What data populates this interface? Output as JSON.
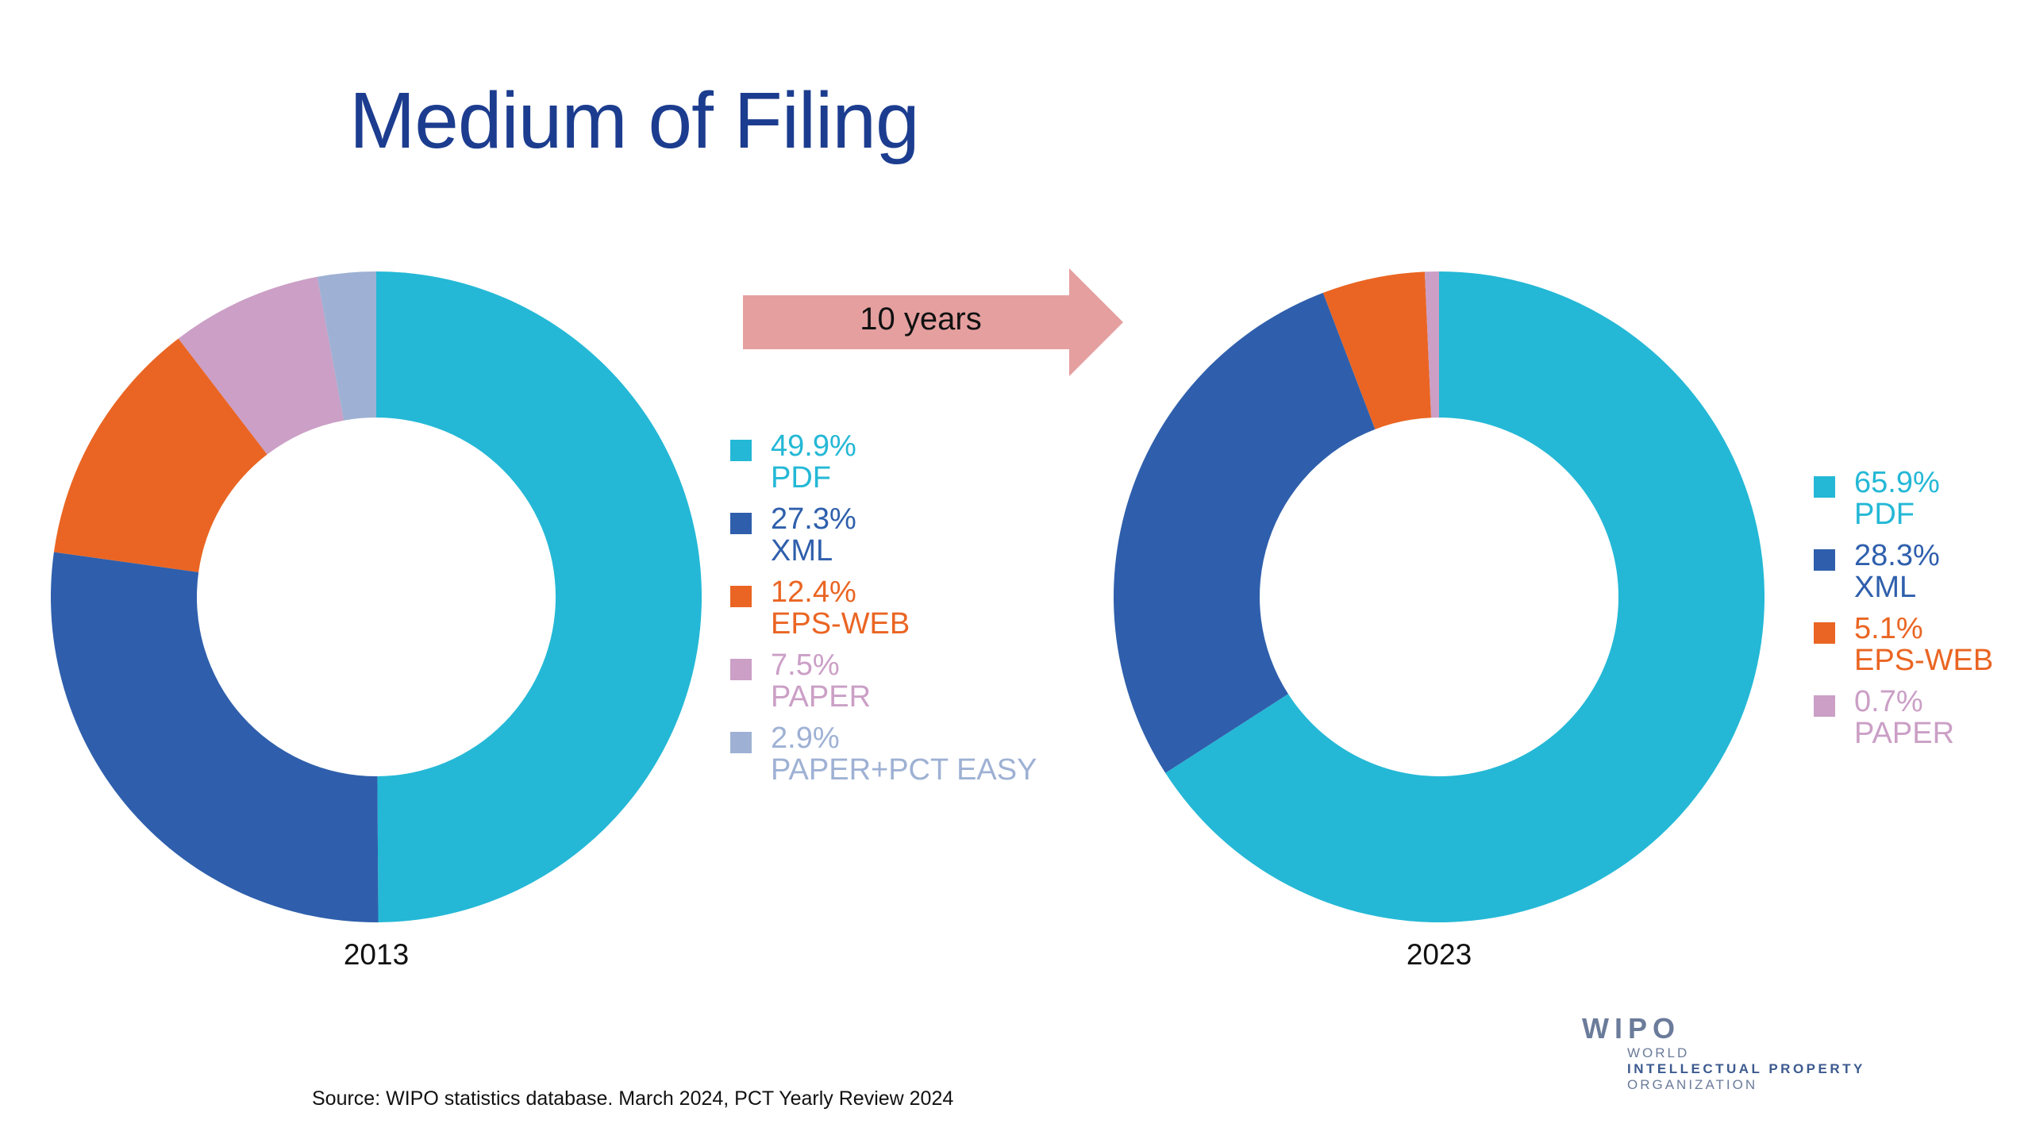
{
  "title": "Medium of Filing",
  "arrow_label": "10 years",
  "source": "Source:  WIPO statistics database. March 2024, PCT Yearly Review 2024",
  "logo": {
    "name": "WIPO",
    "line1": "WORLD",
    "line2": "INTELLECTUAL PROPERTY",
    "line3": "ORGANIZATION"
  },
  "colors": {
    "title": "#1c3d8f",
    "arrow": "#e59f9f",
    "PDF": "#24b8d6",
    "XML": "#2f5fac",
    "EPS-WEB": "#ea6523",
    "PAPER": "#cb9fc6",
    "PAPER+PCT EASY": "#9eb1d4"
  },
  "chart_data": [
    {
      "type": "donut",
      "label": "2013",
      "slices": [
        {
          "name": "PDF",
          "value": 49.9,
          "pct": "49.9%",
          "color": "#24b8d6"
        },
        {
          "name": "XML",
          "value": 27.3,
          "pct": "27.3%",
          "color": "#2f5fac"
        },
        {
          "name": "EPS-WEB",
          "value": 12.4,
          "pct": "12.4%",
          "color": "#ea6523"
        },
        {
          "name": "PAPER",
          "value": 7.5,
          "pct": "7.5%",
          "color": "#cb9fc6"
        },
        {
          "name": "PAPER+PCT EASY",
          "value": 2.9,
          "pct": "2.9%",
          "color": "#9eb1d4"
        }
      ]
    },
    {
      "type": "donut",
      "label": "2023",
      "slices": [
        {
          "name": "PDF",
          "value": 65.9,
          "pct": "65.9%",
          "color": "#24b8d6"
        },
        {
          "name": "XML",
          "value": 28.3,
          "pct": "28.3%",
          "color": "#2f5fac"
        },
        {
          "name": "EPS-WEB",
          "value": 5.1,
          "pct": "5.1%",
          "color": "#ea6523"
        },
        {
          "name": "PAPER",
          "value": 0.7,
          "pct": "0.7%",
          "color": "#cb9fc6"
        }
      ]
    }
  ]
}
